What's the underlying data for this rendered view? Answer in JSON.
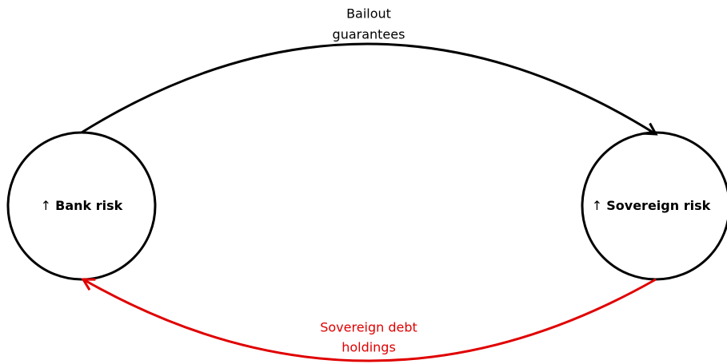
{
  "nodes": [
    {
      "prefix": "↑",
      "label": "Bank risk"
    },
    {
      "prefix": "↑",
      "label": "Sovereign risk"
    }
  ],
  "edges": [
    {
      "label": [
        "Bailout",
        "guarantees"
      ]
    },
    {
      "label": [
        "Sovereign debt",
        "holdings"
      ]
    }
  ]
}
